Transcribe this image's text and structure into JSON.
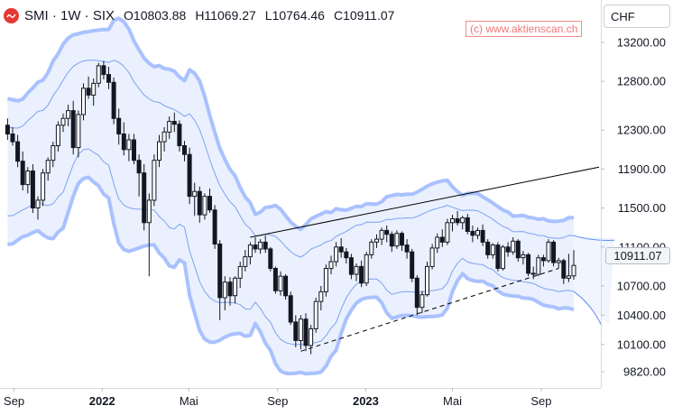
{
  "header": {
    "symbol": "SMI · 1W · SIX",
    "open": "O10803.88",
    "high": "H11069.27",
    "low": "L10764.46",
    "close": "C10911.07"
  },
  "watermark": "(c) www.aktienscan.ch",
  "currency_selector": "CHF",
  "last_price_label": "10911.07",
  "colors": {
    "candle": "#131722",
    "band_outer": "#a9c1ff",
    "band_fill": "#e6edfd",
    "trendline": "#000000",
    "logo": "#e53935"
  },
  "chart_data": {
    "type": "candlestick",
    "timeframe": "1W",
    "y_axis": {
      "ticks": [
        13200,
        12800,
        12300,
        11900,
        11500,
        11100,
        10700,
        10400,
        10100,
        9820
      ],
      "tick_labels": [
        "13200.00",
        "12800.00",
        "12300.00",
        "11900.00",
        "11500.00",
        "11100.00",
        "10700.00",
        "10400.00",
        "10100.00",
        "9820.00"
      ],
      "range": [
        9700,
        13600
      ],
      "position": "right"
    },
    "x_axis": {
      "ticks": [
        {
          "label": "Sep",
          "date": "2021-09-01"
        },
        {
          "label": "2022",
          "date": "2022-01-01"
        },
        {
          "label": "Mai",
          "date": "2022-05-01"
        },
        {
          "label": "Sep",
          "date": "2022-09-01"
        },
        {
          "label": "2023",
          "date": "2023-01-01"
        },
        {
          "label": "Mai",
          "date": "2023-05-01"
        },
        {
          "label": "Sep",
          "date": "2023-09-01"
        }
      ],
      "range": [
        "2021-08-15",
        "2023-11-20"
      ]
    },
    "last_close": 10911.07,
    "ohlc_series": [
      [
        "2021-08-23",
        12350,
        12420,
        12200,
        12260
      ],
      [
        "2021-08-30",
        12260,
        12330,
        12140,
        12180
      ],
      [
        "2021-09-06",
        12180,
        12250,
        11920,
        11980
      ],
      [
        "2021-09-13",
        11980,
        12080,
        11680,
        11740
      ],
      [
        "2021-09-20",
        11740,
        11920,
        11650,
        11880
      ],
      [
        "2021-09-27",
        11880,
        11950,
        11450,
        11500
      ],
      [
        "2021-10-04",
        11500,
        11620,
        11380,
        11580
      ],
      [
        "2021-10-11",
        11580,
        11900,
        11520,
        11860
      ],
      [
        "2021-10-18",
        11860,
        12020,
        11780,
        11990
      ],
      [
        "2021-10-25",
        11990,
        12180,
        11920,
        12140
      ],
      [
        "2021-11-01",
        12140,
        12390,
        12080,
        12350
      ],
      [
        "2021-11-08",
        12350,
        12470,
        12280,
        12420
      ],
      [
        "2021-11-15",
        12420,
        12560,
        12340,
        12500
      ],
      [
        "2021-11-22",
        12500,
        12600,
        12050,
        12120
      ],
      [
        "2021-11-29",
        12120,
        12500,
        12020,
        12460
      ],
      [
        "2021-12-06",
        12460,
        12780,
        12400,
        12730
      ],
      [
        "2021-12-13",
        12730,
        12850,
        12620,
        12660
      ],
      [
        "2021-12-20",
        12660,
        12830,
        12550,
        12780
      ],
      [
        "2021-12-27",
        12780,
        12990,
        12740,
        12960
      ],
      [
        "2022-01-03",
        12960,
        13010,
        12820,
        12870
      ],
      [
        "2022-01-10",
        12870,
        12950,
        12720,
        12790
      ],
      [
        "2022-01-17",
        12790,
        12840,
        12360,
        12420
      ],
      [
        "2022-01-24",
        12420,
        12520,
        12150,
        12260
      ],
      [
        "2022-01-31",
        12260,
        12380,
        12040,
        12100
      ],
      [
        "2022-02-07",
        12100,
        12260,
        11980,
        12200
      ],
      [
        "2022-02-14",
        12200,
        12260,
        11950,
        11990
      ],
      [
        "2022-02-21",
        11990,
        12050,
        11620,
        11860
      ],
      [
        "2022-02-28",
        11860,
        11950,
        11270,
        11350
      ],
      [
        "2022-03-07",
        11350,
        11650,
        10800,
        11580
      ],
      [
        "2022-03-14",
        11580,
        12050,
        11520,
        11990
      ],
      [
        "2022-03-21",
        11990,
        12250,
        11920,
        12180
      ],
      [
        "2022-03-28",
        12180,
        12330,
        12080,
        12280
      ],
      [
        "2022-04-04",
        12280,
        12440,
        12210,
        12390
      ],
      [
        "2022-04-11",
        12390,
        12480,
        12280,
        12360
      ],
      [
        "2022-04-18",
        12360,
        12400,
        12080,
        12140
      ],
      [
        "2022-04-25",
        12140,
        12190,
        11980,
        12050
      ],
      [
        "2022-05-02",
        12050,
        12120,
        11540,
        11620
      ],
      [
        "2022-05-09",
        11620,
        11760,
        11420,
        11670
      ],
      [
        "2022-05-16",
        11670,
        11720,
        11350,
        11430
      ],
      [
        "2022-05-23",
        11430,
        11650,
        11380,
        11620
      ],
      [
        "2022-05-30",
        11620,
        11700,
        11450,
        11480
      ],
      [
        "2022-06-06",
        11480,
        11530,
        11080,
        11130
      ],
      [
        "2022-06-13",
        11130,
        11170,
        10350,
        10580
      ],
      [
        "2022-06-20",
        10580,
        10800,
        10450,
        10740
      ],
      [
        "2022-06-27",
        10740,
        10790,
        10500,
        10600
      ],
      [
        "2022-07-04",
        10600,
        10800,
        10520,
        10780
      ],
      [
        "2022-07-11",
        10780,
        10950,
        10680,
        10900
      ],
      [
        "2022-07-18",
        10900,
        11070,
        10850,
        11000
      ],
      [
        "2022-07-25",
        11000,
        11150,
        10920,
        11120
      ],
      [
        "2022-08-01",
        11120,
        11200,
        11040,
        11080
      ],
      [
        "2022-08-08",
        11080,
        11180,
        11030,
        11150
      ],
      [
        "2022-08-15",
        11150,
        11220,
        11040,
        11080
      ],
      [
        "2022-08-22",
        11080,
        11100,
        10850,
        10880
      ],
      [
        "2022-08-29",
        10880,
        10900,
        10620,
        10650
      ],
      [
        "2022-09-05",
        10650,
        10850,
        10600,
        10800
      ],
      [
        "2022-09-12",
        10800,
        10820,
        10560,
        10600
      ],
      [
        "2022-09-19",
        10600,
        10640,
        10300,
        10330
      ],
      [
        "2022-09-26",
        10330,
        10400,
        10070,
        10140
      ],
      [
        "2022-10-03",
        10140,
        10400,
        10050,
        10360
      ],
      [
        "2022-10-10",
        10360,
        10420,
        10030,
        10090
      ],
      [
        "2022-10-17",
        10090,
        10300,
        10000,
        10260
      ],
      [
        "2022-10-24",
        10260,
        10580,
        10220,
        10540
      ],
      [
        "2022-10-31",
        10540,
        10700,
        10450,
        10640
      ],
      [
        "2022-11-07",
        10640,
        10920,
        10590,
        10880
      ],
      [
        "2022-11-14",
        10880,
        11010,
        10820,
        10950
      ],
      [
        "2022-11-21",
        10950,
        11150,
        10900,
        11100
      ],
      [
        "2022-11-28",
        11100,
        11190,
        10990,
        11050
      ],
      [
        "2022-12-05",
        11050,
        11090,
        10930,
        10990
      ],
      [
        "2022-12-12",
        10990,
        11030,
        10770,
        10820
      ],
      [
        "2022-12-19",
        10820,
        10930,
        10750,
        10900
      ],
      [
        "2022-12-26",
        10900,
        10960,
        10690,
        10730
      ],
      [
        "2023-01-02",
        10730,
        11050,
        10700,
        11020
      ],
      [
        "2023-01-09",
        11020,
        11180,
        10980,
        11150
      ],
      [
        "2023-01-16",
        11150,
        11230,
        11090,
        11180
      ],
      [
        "2023-01-23",
        11180,
        11300,
        11120,
        11270
      ],
      [
        "2023-01-30",
        11270,
        11320,
        11150,
        11230
      ],
      [
        "2023-02-06",
        11230,
        11260,
        11050,
        11110
      ],
      [
        "2023-02-13",
        11110,
        11270,
        11080,
        11240
      ],
      [
        "2023-02-20",
        11240,
        11260,
        11060,
        11120
      ],
      [
        "2023-02-27",
        11120,
        11180,
        10980,
        11050
      ],
      [
        "2023-03-06",
        11050,
        11080,
        10740,
        10780
      ],
      [
        "2023-03-13",
        10780,
        10810,
        10400,
        10480
      ],
      [
        "2023-03-20",
        10480,
        10650,
        10420,
        10610
      ],
      [
        "2023-03-27",
        10610,
        10950,
        10590,
        10900
      ],
      [
        "2023-04-03",
        10900,
        11130,
        10870,
        11090
      ],
      [
        "2023-04-10",
        11090,
        11240,
        11040,
        11200
      ],
      [
        "2023-04-17",
        11200,
        11280,
        11100,
        11150
      ],
      [
        "2023-04-24",
        11150,
        11390,
        11120,
        11350
      ],
      [
        "2023-05-01",
        11350,
        11430,
        11260,
        11390
      ],
      [
        "2023-05-08",
        11390,
        11470,
        11320,
        11350
      ],
      [
        "2023-05-15",
        11350,
        11420,
        11280,
        11400
      ],
      [
        "2023-05-22",
        11400,
        11440,
        11230,
        11260
      ],
      [
        "2023-05-29",
        11260,
        11320,
        11150,
        11220
      ],
      [
        "2023-06-05",
        11220,
        11300,
        11180,
        11270
      ],
      [
        "2023-06-12",
        11270,
        11330,
        11110,
        11150
      ],
      [
        "2023-06-19",
        11150,
        11180,
        10980,
        11020
      ],
      [
        "2023-06-26",
        11020,
        11140,
        10980,
        11120
      ],
      [
        "2023-07-03",
        11120,
        11150,
        10850,
        10880
      ],
      [
        "2023-07-10",
        10880,
        11120,
        10860,
        11100
      ],
      [
        "2023-07-17",
        11100,
        11150,
        11000,
        11050
      ],
      [
        "2023-07-24",
        11050,
        11200,
        11020,
        11160
      ],
      [
        "2023-07-31",
        11160,
        11180,
        10950,
        10990
      ],
      [
        "2023-08-07",
        10990,
        11060,
        10920,
        11020
      ],
      [
        "2023-08-14",
        11020,
        11040,
        10800,
        10830
      ],
      [
        "2023-08-21",
        10830,
        10900,
        10770,
        10820
      ],
      [
        "2023-08-28",
        10820,
        11020,
        10800,
        10990
      ],
      [
        "2023-09-04",
        10990,
        11020,
        10900,
        10960
      ],
      [
        "2023-09-11",
        10960,
        11180,
        10940,
        11150
      ],
      [
        "2023-09-18",
        11150,
        11170,
        10900,
        10940
      ],
      [
        "2023-09-25",
        10940,
        10990,
        10880,
        10960
      ],
      [
        "2023-10-02",
        10960,
        10980,
        10720,
        10780
      ],
      [
        "2023-10-09",
        10780,
        11030,
        10740,
        10803.88
      ],
      [
        "2023-10-16",
        10803.88,
        11069.27,
        10764.46,
        10911.07
      ]
    ],
    "resistance_trendline": {
      "style": "solid",
      "points": [
        [
          "2022-07-25",
          11200
        ],
        [
          "2023-11-20",
          11920
        ]
      ]
    },
    "support_trendline": {
      "style": "dashed",
      "points": [
        [
          "2022-10-03",
          10030
        ],
        [
          "2023-09-25",
          10880
        ]
      ]
    },
    "bands": {
      "style": "channel bands with projected extension",
      "color": "#a9c1ff"
    }
  }
}
